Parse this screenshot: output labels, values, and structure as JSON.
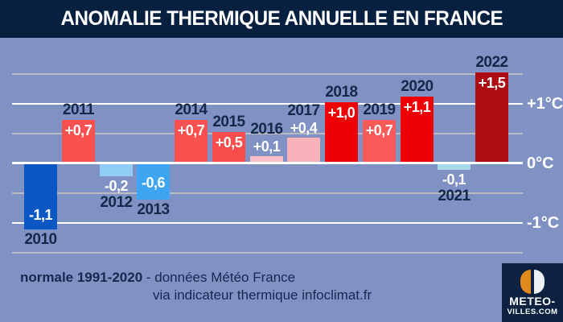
{
  "title": "ANOMALIE THERMIQUE ANNUELLE EN FRANCE",
  "chart_data": {
    "type": "bar",
    "title": "ANOMALIE THERMIQUE ANNUELLE EN FRANCE",
    "categories": [
      "2010",
      "2011",
      "2012",
      "2013",
      "2014",
      "2015",
      "2016",
      "2017",
      "2018",
      "2019",
      "2020",
      "2021",
      "2022"
    ],
    "values": [
      -1.1,
      0.7,
      -0.2,
      -0.6,
      0.7,
      0.5,
      0.1,
      0.4,
      1.0,
      0.7,
      1.1,
      -0.1,
      1.5
    ],
    "value_labels": [
      "-1,1",
      "+0,7",
      "-0,2",
      "-0,6",
      "+0,7",
      "+0,5",
      "+0,1",
      "+0,4",
      "+1,0",
      "+0,7",
      "+1,1",
      "-0,1",
      "+1,5"
    ],
    "bar_colors": [
      "#0b58c5",
      "#f8514f",
      "#8fccf6",
      "#3da5f2",
      "#f8514f",
      "#f84d4c",
      "#fbbfc5",
      "#f8b2b9",
      "#ee0105",
      "#f85a59",
      "#ee0105",
      "#a5dbe9",
      "#ad0d12"
    ],
    "unit": "°C",
    "ylim": [
      -1.5,
      1.75
    ],
    "grid": true,
    "legend": false,
    "y_axis_ticks": [
      {
        "label": "+1°C",
        "value": 1
      },
      {
        "label": "0°C",
        "value": 0
      },
      {
        "label": "-1°C",
        "value": -1
      }
    ],
    "minor_gridlines": [
      1.5,
      0.5,
      -0.5,
      -1.5
    ],
    "major_gridlines": [
      1,
      -1
    ]
  },
  "footer": {
    "normale": "normale 1991-2020",
    "source_line1": "- données Météo France",
    "source_line2": "via indicateur thermique infoclimat.fr"
  },
  "logo": {
    "line1": "METEO-",
    "line2": "VILLES.COM"
  },
  "colors": {
    "title_bg": "#082040",
    "chart_bg": "#8092c4",
    "year_text": "#14294a",
    "value_text": "#ffffff",
    "grid_major": "#ffffff",
    "grid_minor": "#cdcabe",
    "footer_text": "#15294e",
    "logo_bg": "#0c2240",
    "logo_orange": "#e0891c"
  }
}
